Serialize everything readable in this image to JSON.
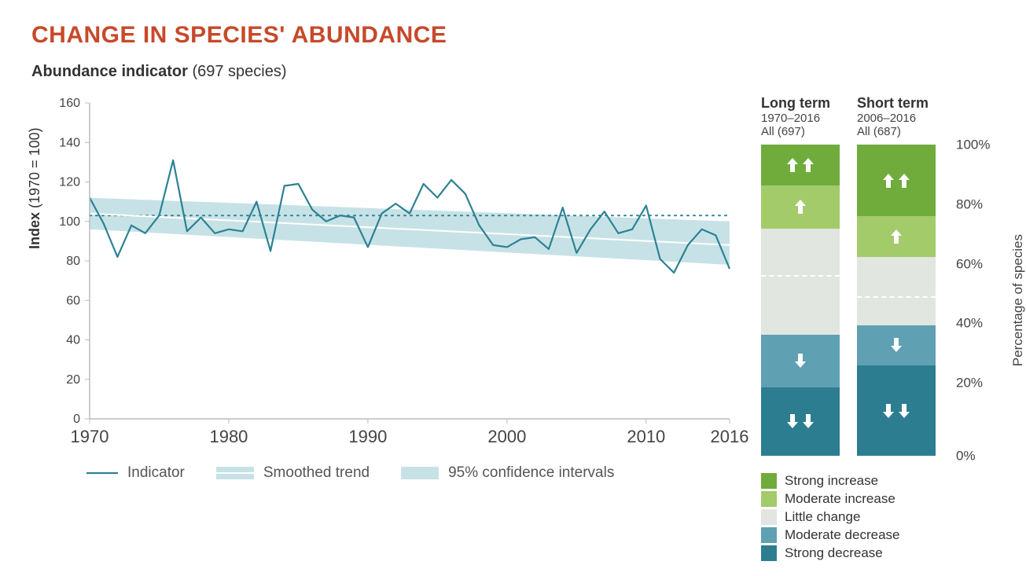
{
  "title": "CHANGE IN SPECIES' ABUNDANCE",
  "subtitle_bold": "Abundance indicator",
  "subtitle_rest": " (697 species)",
  "y_axis_label_bold": "Index",
  "y_axis_label_rest": " (1970 = 100)",
  "colors": {
    "title": "#c7492a",
    "indicator_line": "#2c8293",
    "ci_band": "#c7e2e6",
    "axis": "#bcbcbc",
    "text": "#444444",
    "background": "#ffffff",
    "strong_increase": "#6fac3c",
    "moderate_increase": "#a3cb6a",
    "little_change": "#e2e6e0",
    "moderate_decrease": "#5fa0b3",
    "strong_decrease": "#2d7d90"
  },
  "line_chart": {
    "type": "line",
    "xlim": [
      1970,
      2016
    ],
    "ylim": [
      0,
      160
    ],
    "ytick_step": 20,
    "xticks": [
      1970,
      1980,
      1990,
      2000,
      2010,
      2016
    ],
    "reference_value": 103,
    "ci_upper_1970": 112,
    "ci_lower_1970": 96,
    "ci_upper_2016": 100,
    "ci_lower_2016": 78,
    "trend_1970": 104,
    "trend_2016": 88,
    "years": [
      1970,
      1971,
      1972,
      1973,
      1974,
      1975,
      1976,
      1977,
      1978,
      1979,
      1980,
      1981,
      1982,
      1983,
      1984,
      1985,
      1986,
      1987,
      1988,
      1989,
      1990,
      1991,
      1992,
      1993,
      1994,
      1995,
      1996,
      1997,
      1998,
      1999,
      2000,
      2001,
      2002,
      2003,
      2004,
      2005,
      2006,
      2007,
      2008,
      2009,
      2010,
      2011,
      2012,
      2013,
      2014,
      2015,
      2016
    ],
    "values": [
      112,
      99,
      82,
      98,
      94,
      103,
      131,
      95,
      102,
      94,
      96,
      95,
      110,
      85,
      118,
      119,
      106,
      100,
      103,
      102,
      87,
      104,
      109,
      104,
      119,
      112,
      121,
      114,
      98,
      88,
      87,
      91,
      92,
      86,
      107,
      84,
      96,
      105,
      94,
      96,
      108,
      81,
      74,
      88,
      96,
      93,
      76
    ],
    "line_width": 2.2
  },
  "legend_line": {
    "indicator": "Indicator",
    "smoothed": "Smoothed trend",
    "ci": "95% confidence intervals"
  },
  "bars": {
    "long_term": {
      "title": "Long term",
      "period": "1970–2016",
      "subset": "All (697)",
      "segments": [
        {
          "key": "strong_decrease",
          "pct": 22,
          "color": "#2d7d90",
          "arrows": "down2"
        },
        {
          "key": "moderate_decrease",
          "pct": 17,
          "color": "#5fa0b3",
          "arrows": "down1"
        },
        {
          "key": "little_change",
          "pct": 34,
          "color": "#e2e6e0",
          "arrows": "none",
          "dash_at_frac": 0.55
        },
        {
          "key": "moderate_increase",
          "pct": 14,
          "color": "#a3cb6a",
          "arrows": "up1"
        },
        {
          "key": "strong_increase",
          "pct": 13,
          "color": "#6fac3c",
          "arrows": "up2"
        }
      ]
    },
    "short_term": {
      "title": "Short term",
      "period": "2006–2016",
      "subset": "All (687)",
      "segments": [
        {
          "key": "strong_decrease",
          "pct": 29,
          "color": "#2d7d90",
          "arrows": "down2"
        },
        {
          "key": "moderate_decrease",
          "pct": 13,
          "color": "#5fa0b3",
          "arrows": "down1"
        },
        {
          "key": "little_change",
          "pct": 22,
          "color": "#e2e6e0",
          "arrows": "none",
          "dash_at_frac": 0.4
        },
        {
          "key": "moderate_increase",
          "pct": 13,
          "color": "#a3cb6a",
          "arrows": "up1"
        },
        {
          "key": "strong_increase",
          "pct": 23,
          "color": "#6fac3c",
          "arrows": "up2"
        }
      ]
    },
    "pct_ticks": [
      "100%",
      "80%",
      "60%",
      "40%",
      "20%",
      "0%"
    ],
    "pct_axis_label": "Percentage of species"
  },
  "cat_legend": [
    {
      "label": "Strong increase",
      "color": "#6fac3c"
    },
    {
      "label": "Moderate increase",
      "color": "#a3cb6a"
    },
    {
      "label": "Little change",
      "color": "#e2e6e0"
    },
    {
      "label": "Moderate decrease",
      "color": "#5fa0b3"
    },
    {
      "label": "Strong decrease",
      "color": "#2d7d90"
    }
  ]
}
